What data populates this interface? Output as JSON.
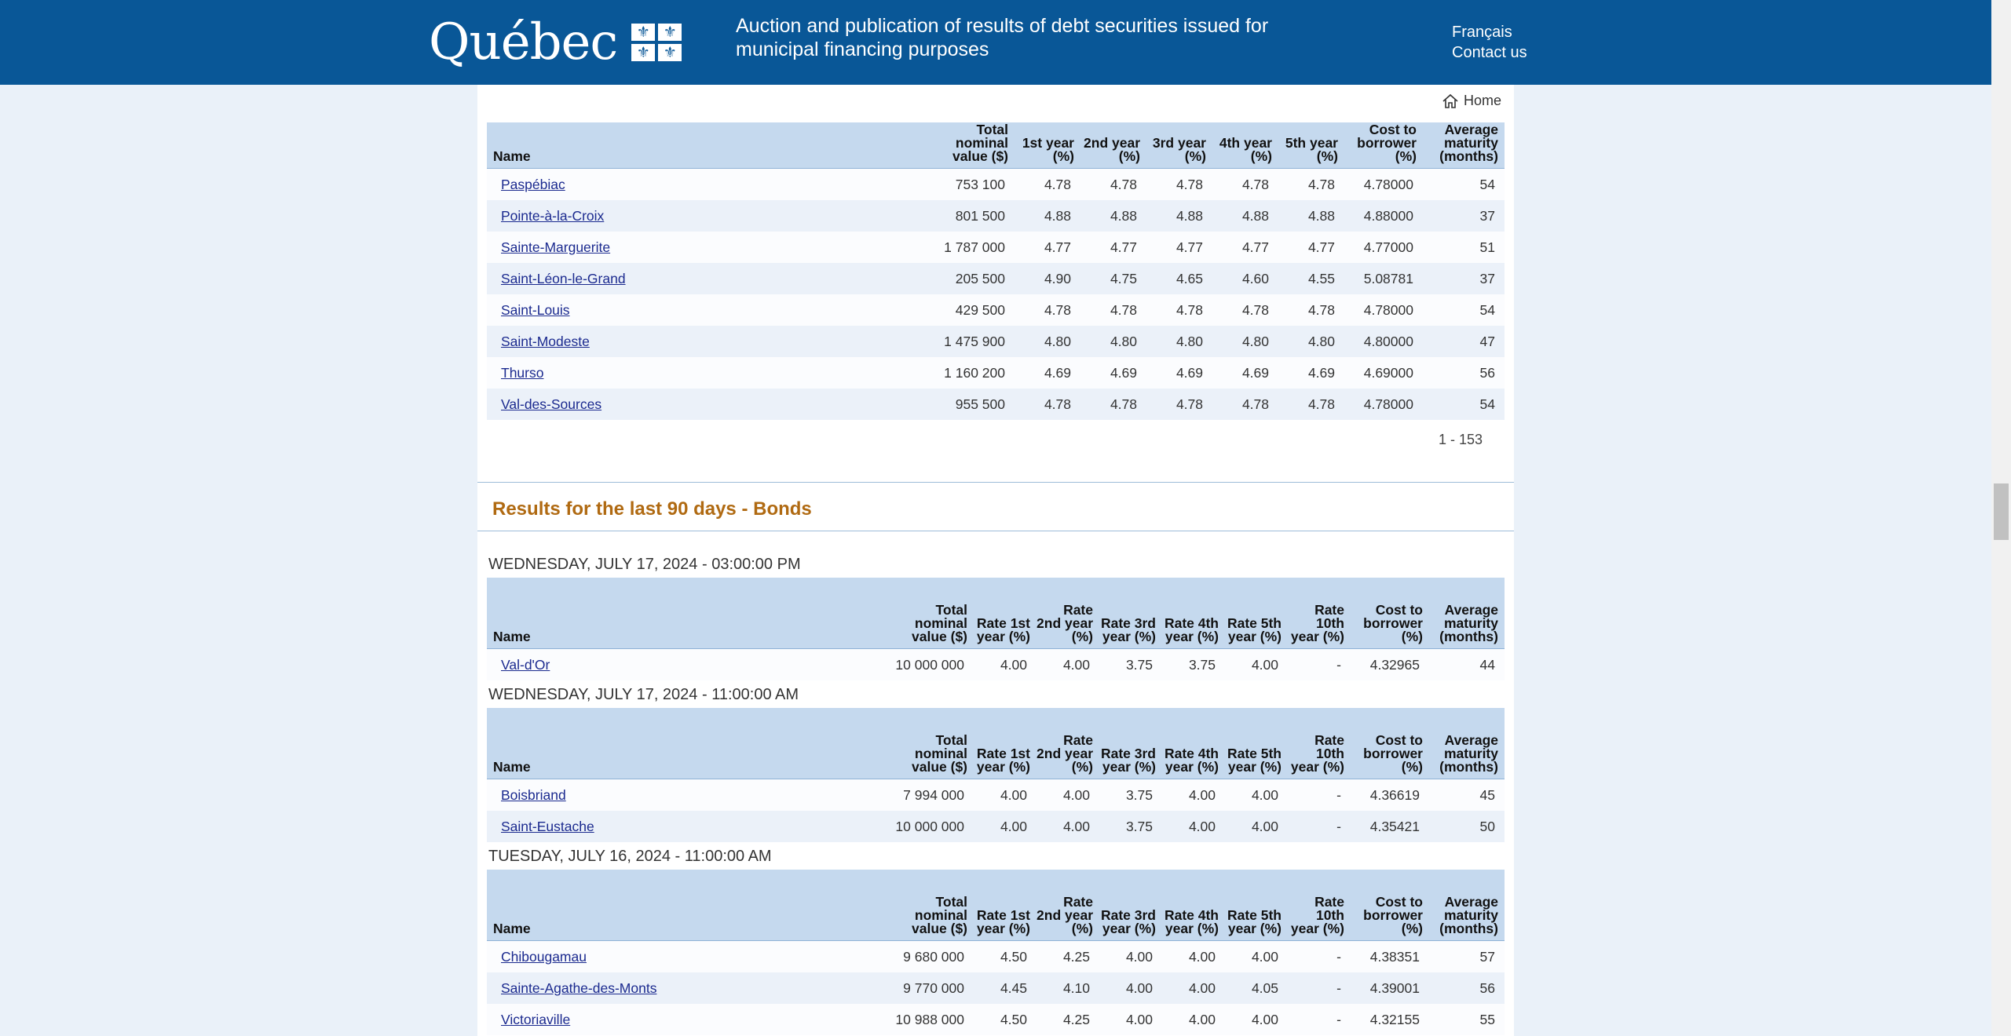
{
  "header": {
    "logo_text": "Québec",
    "flag_symbol": "⚜",
    "title": "Auction and publication of results of debt securities issued for municipal financing purposes",
    "lang_link": "Français",
    "contact_link": "Contact us"
  },
  "nav": {
    "home": "Home"
  },
  "top_table": {
    "headers": [
      "Name",
      "Total nominal value ($)",
      "1st year (%)",
      "2nd year (%)",
      "3rd year (%)",
      "4th year (%)",
      "5th year (%)",
      "Cost to borrower (%)",
      "Average maturity (months)"
    ],
    "rows": [
      [
        "Paspébiac",
        "753 100",
        "4.78",
        "4.78",
        "4.78",
        "4.78",
        "4.78",
        "4.78000",
        "54"
      ],
      [
        "Pointe-à-la-Croix",
        "801 500",
        "4.88",
        "4.88",
        "4.88",
        "4.88",
        "4.88",
        "4.88000",
        "37"
      ],
      [
        "Sainte-Marguerite",
        "1 787 000",
        "4.77",
        "4.77",
        "4.77",
        "4.77",
        "4.77",
        "4.77000",
        "51"
      ],
      [
        "Saint-Léon-le-Grand",
        "205 500",
        "4.90",
        "4.75",
        "4.65",
        "4.60",
        "4.55",
        "5.08781",
        "37"
      ],
      [
        "Saint-Louis",
        "429 500",
        "4.78",
        "4.78",
        "4.78",
        "4.78",
        "4.78",
        "4.78000",
        "54"
      ],
      [
        "Saint-Modeste",
        "1 475 900",
        "4.80",
        "4.80",
        "4.80",
        "4.80",
        "4.80",
        "4.80000",
        "47"
      ],
      [
        "Thurso",
        "1 160 200",
        "4.69",
        "4.69",
        "4.69",
        "4.69",
        "4.69",
        "4.69000",
        "56"
      ],
      [
        "Val-des-Sources",
        "955 500",
        "4.78",
        "4.78",
        "4.78",
        "4.78",
        "4.78",
        "4.78000",
        "54"
      ]
    ],
    "pager": "1 - 153"
  },
  "bonds": {
    "section_title": "Results for the last 90 days - Bonds",
    "headers": [
      "Name",
      "Total nominal value ($)",
      "Rate 1st year (%)",
      "Rate 2nd year (%)",
      "Rate 3rd year (%)",
      "Rate 4th year (%)",
      "Rate 5th year (%)",
      "Rate 10th year (%)",
      "Cost to borrower (%)",
      "Average maturity (months)"
    ],
    "groups": [
      {
        "date": "WEDNESDAY, JULY 17, 2024 - 03:00:00 PM",
        "rows": [
          [
            "Val-d'Or",
            "10 000 000",
            "4.00",
            "4.00",
            "3.75",
            "3.75",
            "4.00",
            "-",
            "4.32965",
            "44"
          ]
        ]
      },
      {
        "date": "WEDNESDAY, JULY 17, 2024 - 11:00:00 AM",
        "rows": [
          [
            "Boisbriand",
            "7 994 000",
            "4.00",
            "4.00",
            "3.75",
            "4.00",
            "4.00",
            "-",
            "4.36619",
            "45"
          ],
          [
            "Saint-Eustache",
            "10 000 000",
            "4.00",
            "4.00",
            "3.75",
            "4.00",
            "4.00",
            "-",
            "4.35421",
            "50"
          ]
        ]
      },
      {
        "date": "TUESDAY, JULY 16, 2024 - 11:00:00 AM",
        "rows": [
          [
            "Chibougamau",
            "9 680 000",
            "4.50",
            "4.25",
            "4.00",
            "4.00",
            "4.00",
            "-",
            "4.38351",
            "57"
          ],
          [
            "Sainte-Agathe-des-Monts",
            "9 770 000",
            "4.45",
            "4.10",
            "4.00",
            "4.00",
            "4.05",
            "-",
            "4.39001",
            "56"
          ],
          [
            "Victoriaville",
            "10 988 000",
            "4.50",
            "4.25",
            "4.00",
            "4.00",
            "4.00",
            "-",
            "4.32155",
            "55"
          ]
        ]
      }
    ]
  }
}
